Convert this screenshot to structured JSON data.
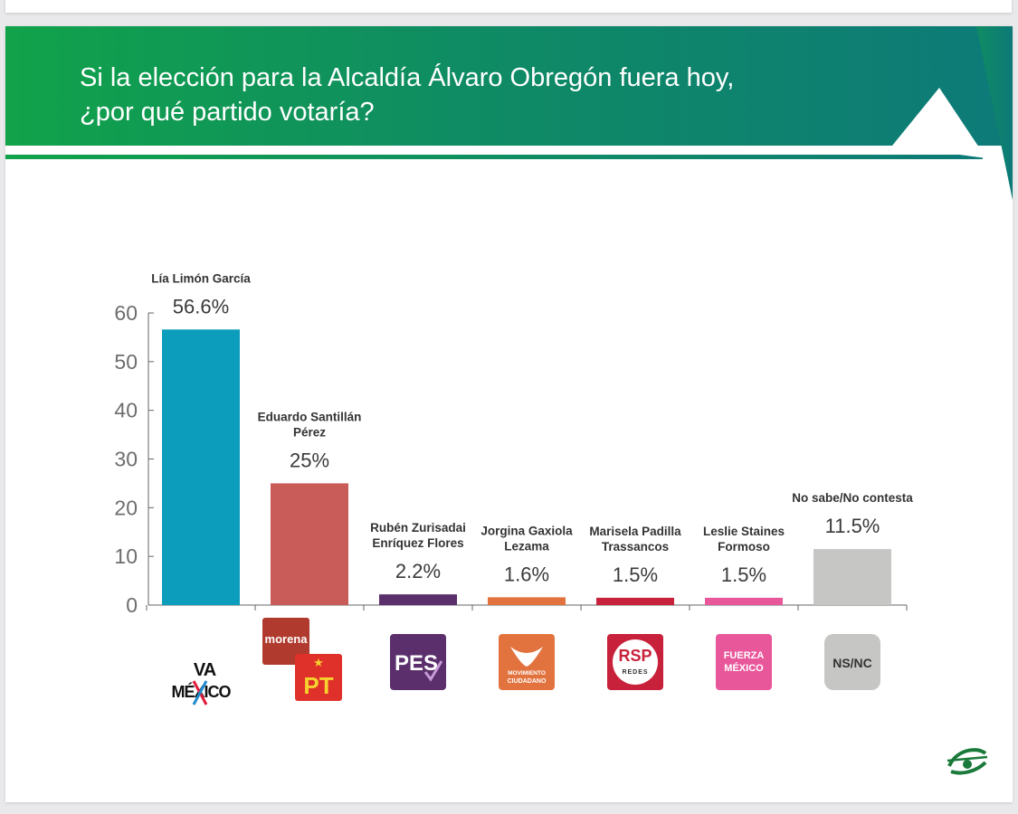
{
  "title": {
    "line1": "Si la elección para la Alcaldía Álvaro Obregón fuera hoy,",
    "line2": "¿por qué partido votaría?"
  },
  "colors": {
    "banner_start": "#11a24a",
    "banner_end": "#0d7a78"
  },
  "chart_data": {
    "type": "bar",
    "title": "Si la elección para la Alcaldía Álvaro Obregón fuera hoy, ¿por qué partido votaría?",
    "ylim": [
      0,
      60
    ],
    "yticks": [
      0,
      10,
      20,
      30,
      40,
      50,
      60
    ],
    "grid": false,
    "categories": [
      "Lía Limón García",
      "Eduardo Santillán Pérez",
      "Rubén Zurisadai Enríquez Flores",
      "Jorgina Gaxiola Lezama",
      "Marisela Padilla Trassancos",
      "Leslie Staines Formoso",
      "No sabe/No contesta"
    ],
    "name_lines": [
      [
        "Lía Limón García"
      ],
      [
        "Eduardo Santillán",
        "Pérez"
      ],
      [
        "Rubén Zurisadai",
        "Enríquez Flores"
      ],
      [
        "Jorgina Gaxiola",
        "Lezama"
      ],
      [
        "Marisela Padilla",
        "Trassancos"
      ],
      [
        "Leslie Staines",
        "Formoso"
      ],
      [
        "No sabe/No contesta"
      ]
    ],
    "values": [
      56.6,
      25,
      2.2,
      1.6,
      1.5,
      1.5,
      11.5
    ],
    "value_labels": [
      "56.6%",
      "25%",
      "2.2%",
      "1.6%",
      "1.5%",
      "1.5%",
      "11.5%"
    ],
    "bar_colors": [
      "#0b9dbb",
      "#c95b59",
      "#5a2f6b",
      "#e2733f",
      "#c8213b",
      "#e9579b",
      "#c6c6c4"
    ],
    "parties": [
      {
        "name": "Va por México",
        "icon": "va-por-mexico-logo",
        "texts": [
          "VA",
          "MÉXICO"
        ]
      },
      {
        "name": "Morena-PT",
        "icon": "morena-pt-logo",
        "texts": [
          "morena",
          "PT"
        ]
      },
      {
        "name": "PES",
        "icon": "pes-logo",
        "texts": [
          "PES"
        ]
      },
      {
        "name": "Movimiento Ciudadano",
        "icon": "movimiento-ciudadano-logo",
        "texts": [
          "MOVIMIENTO",
          "CIUDADANO"
        ]
      },
      {
        "name": "Redes Sociales Progresistas",
        "icon": "rsp-logo",
        "texts": [
          "RSP",
          "REDES"
        ]
      },
      {
        "name": "Fuerza por México",
        "icon": "fuerza-mexico-logo",
        "texts": [
          "FUERZA",
          "MÉXICO"
        ]
      },
      {
        "name": "NS/NC",
        "icon": "nsnc-badge",
        "texts": [
          "NS/NC"
        ]
      }
    ]
  }
}
